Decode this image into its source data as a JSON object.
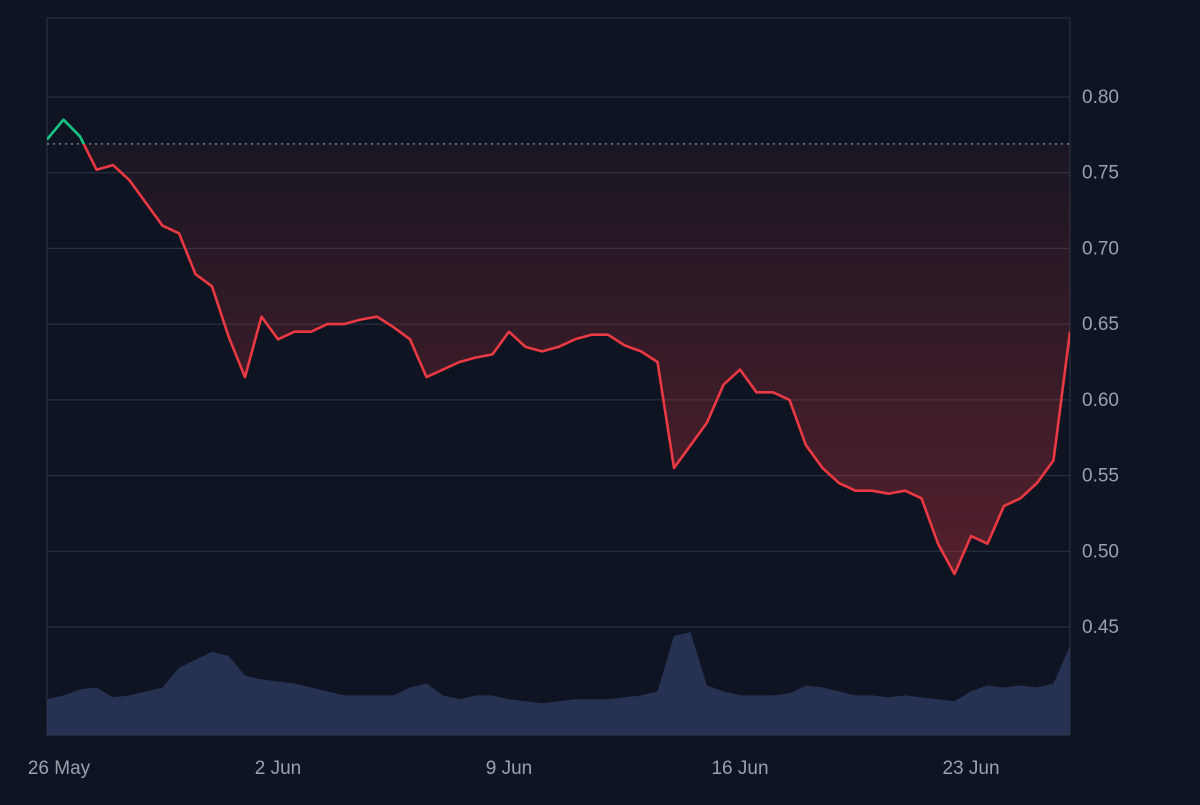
{
  "chart_data": {
    "type": "line",
    "title": "",
    "xlabel": "",
    "ylabel": "",
    "ylim": [
      0.45,
      0.8
    ],
    "xlim": [
      "2024-05-26",
      "2024-06-26"
    ],
    "y_ticks": [
      "0.80",
      "0.75",
      "0.70",
      "0.65",
      "0.60",
      "0.55",
      "0.50",
      "0.45"
    ],
    "x_ticks": [
      "26 May",
      "2 Jun",
      "9 Jun",
      "16 Jun",
      "23 Jun"
    ],
    "baseline": 0.769,
    "grid": true,
    "colors": {
      "background": "#0e1421",
      "grid": "#2e3442",
      "axis_text": "#9aa1ad",
      "up_line": "#16c784",
      "down_line": "#ea3943",
      "volume": "#2a3558",
      "baseline": "#c8ccd4"
    },
    "series": [
      {
        "x": [
          "2024-05-26",
          "2024-05-26 12:00",
          "2024-05-27",
          "2024-05-27 12:00",
          "2024-05-28",
          "2024-05-28 12:00",
          "2024-05-29",
          "2024-05-29 12:00",
          "2024-05-30",
          "2024-05-30 12:00",
          "2024-05-31",
          "2024-05-31 12:00",
          "2024-06-01",
          "2024-06-01 12:00",
          "2024-06-02",
          "2024-06-02 12:00",
          "2024-06-03",
          "2024-06-03 12:00",
          "2024-06-04",
          "2024-06-04 12:00",
          "2024-06-05",
          "2024-06-05 12:00",
          "2024-06-06",
          "2024-06-06 12:00",
          "2024-06-07",
          "2024-06-07 12:00",
          "2024-06-08",
          "2024-06-08 12:00",
          "2024-06-09",
          "2024-06-09 12:00",
          "2024-06-10",
          "2024-06-10 12:00",
          "2024-06-11",
          "2024-06-11 12:00",
          "2024-06-12",
          "2024-06-12 12:00",
          "2024-06-13",
          "2024-06-13 12:00",
          "2024-06-14",
          "2024-06-14 12:00",
          "2024-06-15",
          "2024-06-15 12:00",
          "2024-06-16",
          "2024-06-16 12:00",
          "2024-06-17",
          "2024-06-17 12:00",
          "2024-06-18",
          "2024-06-18 12:00",
          "2024-06-19",
          "2024-06-19 12:00",
          "2024-06-20",
          "2024-06-20 12:00",
          "2024-06-21",
          "2024-06-21 12:00",
          "2024-06-22",
          "2024-06-22 12:00",
          "2024-06-23",
          "2024-06-23 12:00",
          "2024-06-24",
          "2024-06-24 12:00",
          "2024-06-25",
          "2024-06-25 12:00",
          "2024-06-26"
        ],
        "values": [
          0.772,
          0.785,
          0.774,
          0.752,
          0.755,
          0.745,
          0.73,
          0.715,
          0.71,
          0.683,
          0.675,
          0.642,
          0.615,
          0.655,
          0.64,
          0.645,
          0.645,
          0.65,
          0.65,
          0.653,
          0.655,
          0.648,
          0.64,
          0.615,
          0.62,
          0.625,
          0.628,
          0.63,
          0.645,
          0.635,
          0.632,
          0.635,
          0.64,
          0.643,
          0.643,
          0.636,
          0.632,
          0.625,
          0.555,
          0.57,
          0.585,
          0.61,
          0.62,
          0.605,
          0.605,
          0.6,
          0.57,
          0.555,
          0.545,
          0.54,
          0.54,
          0.538,
          0.54,
          0.535,
          0.505,
          0.485,
          0.51,
          0.505,
          0.53,
          0.535,
          0.545,
          0.56,
          0.645
        ]
      }
    ],
    "volume": [
      0.18,
      0.2,
      0.23,
      0.24,
      0.19,
      0.2,
      0.22,
      0.24,
      0.34,
      0.38,
      0.42,
      0.4,
      0.3,
      0.28,
      0.27,
      0.26,
      0.24,
      0.22,
      0.2,
      0.2,
      0.2,
      0.2,
      0.24,
      0.26,
      0.2,
      0.18,
      0.2,
      0.2,
      0.18,
      0.17,
      0.16,
      0.17,
      0.18,
      0.18,
      0.18,
      0.19,
      0.2,
      0.22,
      0.5,
      0.52,
      0.25,
      0.22,
      0.2,
      0.2,
      0.2,
      0.21,
      0.25,
      0.24,
      0.22,
      0.2,
      0.2,
      0.19,
      0.2,
      0.19,
      0.18,
      0.17,
      0.22,
      0.25,
      0.24,
      0.25,
      0.24,
      0.26,
      0.45
    ]
  }
}
